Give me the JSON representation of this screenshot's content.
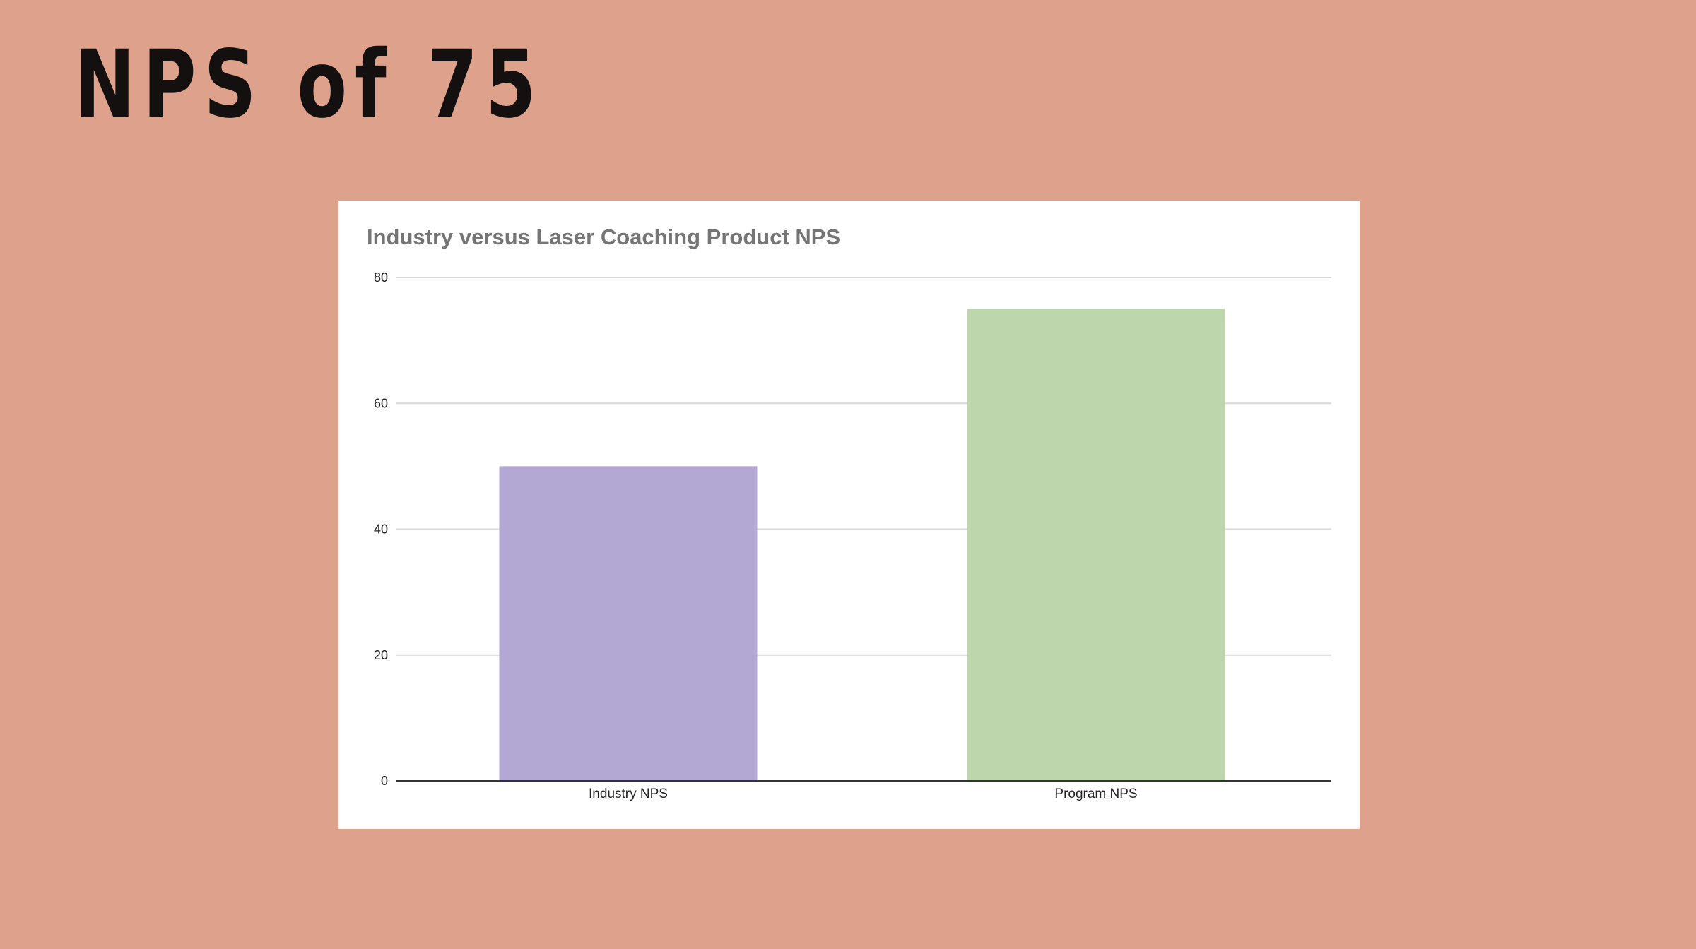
{
  "slide": {
    "title": "NPS of 75",
    "background": "#dea18b"
  },
  "chart_data": {
    "type": "bar",
    "title": "Industry versus Laser Coaching Product NPS",
    "xlabel": "",
    "ylabel": "",
    "categories": [
      "Industry NPS",
      "Program NPS"
    ],
    "values": [
      50,
      75
    ],
    "colors": [
      "#b3a8d4",
      "#bdd6ab"
    ],
    "ylim": [
      0,
      80
    ],
    "yticks": [
      0,
      20,
      40,
      60,
      80
    ],
    "grid": true,
    "legend": "none"
  }
}
